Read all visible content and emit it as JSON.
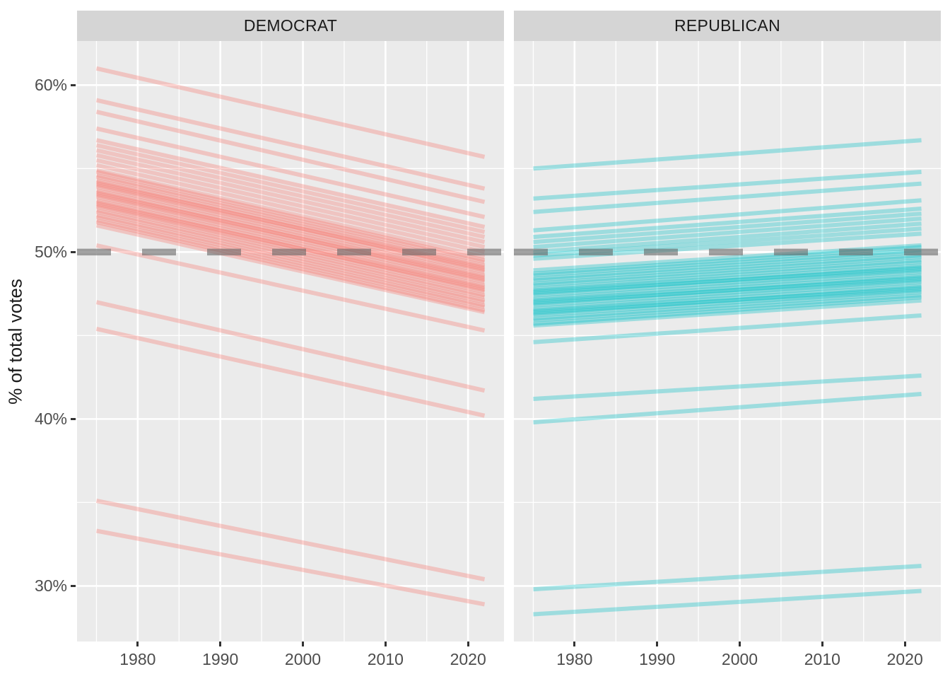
{
  "chart_data": {
    "type": "line",
    "title": "",
    "xlabel": "",
    "ylabel": "% of total votes",
    "grid": "on",
    "legend": "none",
    "facet_layout": "two panels side by side, shared axes",
    "x_ticks": [
      "1980",
      "1990",
      "2000",
      "2010",
      "2020"
    ],
    "x_tick_values": [
      1980,
      1990,
      2000,
      2010,
      2020
    ],
    "x_minor_values": [
      1975,
      1985,
      1995,
      2005,
      2015
    ],
    "y_ticks": [
      "30%",
      "40%",
      "50%",
      "60%"
    ],
    "y_tick_values": [
      30,
      40,
      50,
      60
    ],
    "y_minor_values": [
      35,
      45,
      55
    ],
    "x_domain": [
      1972.65,
      2024.35
    ],
    "y_domain": [
      26.67,
      62.64
    ],
    "line_x_start_year": 1975,
    "line_x_end_year": 2022,
    "reference_line": {
      "y": 50,
      "style": "dashed",
      "color": "#666666",
      "opacity": 0.6
    },
    "facets": [
      {
        "label": "DEMOCRAT",
        "line_color": "#F8766D",
        "line_alpha": 0.33,
        "lines_start_end_pct": [
          [
            61.0,
            55.7
          ],
          [
            59.1,
            53.8
          ],
          [
            58.4,
            53.0
          ],
          [
            57.4,
            52.1
          ],
          [
            56.7,
            51.5
          ],
          [
            56.4,
            51.2
          ],
          [
            56.1,
            50.9
          ],
          [
            55.8,
            50.6
          ],
          [
            55.5,
            50.3
          ],
          [
            55.2,
            50.0
          ],
          [
            54.9,
            49.7
          ],
          [
            54.8,
            49.5
          ],
          [
            54.6,
            49.4
          ],
          [
            54.5,
            49.2
          ],
          [
            54.3,
            49.1
          ],
          [
            54.2,
            48.9
          ],
          [
            54.0,
            48.8
          ],
          [
            53.9,
            48.6
          ],
          [
            53.7,
            48.5
          ],
          [
            53.6,
            48.3
          ],
          [
            53.4,
            48.2
          ],
          [
            53.3,
            48.0
          ],
          [
            53.1,
            47.9
          ],
          [
            53.0,
            47.7
          ],
          [
            52.8,
            47.6
          ],
          [
            52.7,
            47.4
          ],
          [
            52.5,
            47.3
          ],
          [
            52.4,
            47.1
          ],
          [
            52.2,
            47.0
          ],
          [
            52.1,
            46.8
          ],
          [
            51.9,
            46.7
          ],
          [
            51.8,
            46.5
          ],
          [
            51.6,
            46.4
          ],
          [
            52.9,
            47.8
          ],
          [
            53.5,
            48.4
          ],
          [
            54.1,
            49.0
          ],
          [
            50.4,
            45.3
          ],
          [
            47.0,
            41.7
          ],
          [
            45.4,
            40.2
          ],
          [
            35.1,
            30.4
          ],
          [
            33.3,
            28.9
          ]
        ]
      },
      {
        "label": "REPUBLICAN",
        "line_color": "#00BFC4",
        "line_alpha": 0.33,
        "lines_start_end_pct": [
          [
            55.0,
            56.7
          ],
          [
            53.2,
            54.8
          ],
          [
            52.4,
            54.1
          ],
          [
            51.3,
            53.1
          ],
          [
            50.9,
            52.6
          ],
          [
            50.6,
            52.3
          ],
          [
            50.3,
            52.0
          ],
          [
            50.0,
            51.7
          ],
          [
            49.8,
            51.4
          ],
          [
            49.6,
            51.1
          ],
          [
            48.9,
            50.4
          ],
          [
            48.7,
            50.3
          ],
          [
            48.6,
            50.1
          ],
          [
            48.4,
            50.0
          ],
          [
            48.3,
            49.8
          ],
          [
            48.1,
            49.7
          ],
          [
            48.0,
            49.5
          ],
          [
            47.8,
            49.4
          ],
          [
            47.7,
            49.2
          ],
          [
            47.5,
            49.1
          ],
          [
            47.4,
            48.9
          ],
          [
            47.2,
            48.8
          ],
          [
            47.1,
            48.6
          ],
          [
            46.9,
            48.5
          ],
          [
            46.8,
            48.3
          ],
          [
            46.6,
            48.2
          ],
          [
            46.5,
            48.0
          ],
          [
            46.3,
            47.9
          ],
          [
            46.2,
            47.7
          ],
          [
            46.0,
            47.6
          ],
          [
            45.9,
            47.4
          ],
          [
            45.7,
            47.3
          ],
          [
            45.6,
            47.1
          ],
          [
            46.4,
            47.8
          ],
          [
            47.0,
            48.4
          ],
          [
            47.6,
            49.0
          ],
          [
            44.6,
            46.2
          ],
          [
            41.2,
            42.6
          ],
          [
            39.8,
            41.5
          ],
          [
            29.8,
            31.2
          ],
          [
            28.3,
            29.7
          ]
        ]
      }
    ]
  },
  "theme": {
    "page_bg": "#FFFFFF",
    "panel_bg": "#EBEBEB",
    "strip_bg": "#D5D5D5",
    "strip_text": "#1A1A1A",
    "grid_major": "#FFFFFF",
    "grid_minor": "#FFFFFF",
    "axis_text": "#4D4D4D",
    "axis_title": "#1A1A1A",
    "tick_mark": "#333333"
  }
}
